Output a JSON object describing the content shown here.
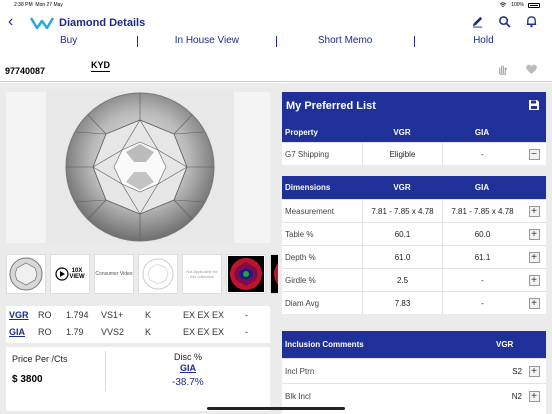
{
  "status_bar": {
    "time": "2:38 PM",
    "date": "Mon 27 May",
    "battery": "100%"
  },
  "nav": {
    "title": "Diamond Details"
  },
  "actions": [
    "Buy",
    "In House View",
    "Short Memo",
    "Hold"
  ],
  "stock": {
    "id": "97740087",
    "kyd": "KYD"
  },
  "thumbs": {
    "video_number": "10X",
    "video_label": "VIEW",
    "consumer_video": "Consumer Video",
    "not_applicable": "Not Applicable for this collection"
  },
  "grading": [
    {
      "lab": "VGR",
      "shape": "RO",
      "carat": "1.794",
      "clarity": "VS1+",
      "color": "K",
      "cut": "EX EX EX",
      "fl": "-"
    },
    {
      "lab": "GIA",
      "shape": "RO",
      "carat": "1.79",
      "clarity": "VVS2",
      "color": "K",
      "cut": "EX EX EX",
      "fl": "-"
    }
  ],
  "price": {
    "label": "Price Per /Cts",
    "value": "$ 3800",
    "disc_label": "Disc %",
    "disc_lab": "GIA",
    "disc_value": "-38.7%"
  },
  "preferred": {
    "title": "My Preferred List",
    "headers": [
      "Property",
      "VGR",
      "GIA"
    ],
    "rows": [
      {
        "label": "G7 Shipping",
        "vgr": "Eligible",
        "gia": "-",
        "action": "−"
      }
    ]
  },
  "dimensions": {
    "headers": [
      "Dimensions",
      "VGR",
      "GIA"
    ],
    "rows": [
      {
        "label": "Measurement",
        "vgr": "7.81 - 7.85 x 4.78",
        "gia": "7.81 - 7.85 x 4.78",
        "action": "+"
      },
      {
        "label": "Table %",
        "vgr": "60.1",
        "gia": "60.0",
        "action": "+"
      },
      {
        "label": "Depth %",
        "vgr": "61.0",
        "gia": "61.1",
        "action": "+"
      },
      {
        "label": "Girdle %",
        "vgr": "2.5",
        "gia": "-",
        "action": "+"
      },
      {
        "label": "Diam Avg",
        "vgr": "7.83",
        "gia": "-",
        "action": "+"
      }
    ]
  },
  "inclusions": {
    "headers": [
      "Inclusion Comments",
      "VGR"
    ],
    "rows": [
      {
        "label": "Incl Ptrn",
        "vgr": "S2",
        "action": "+"
      },
      {
        "label": "Blk Incl",
        "vgr": "N2",
        "action": "+"
      }
    ]
  },
  "colors": {
    "accent": "#1b2a8c",
    "header_bg": "#1f3199",
    "disc": "#1b2a8c"
  }
}
